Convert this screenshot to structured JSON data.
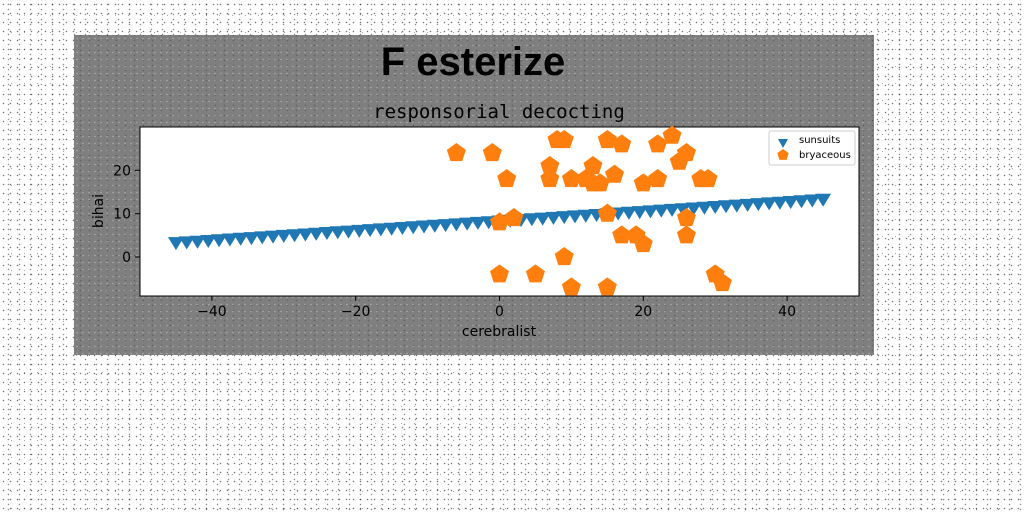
{
  "chart_data": {
    "type": "scatter",
    "title": "F esterize",
    "subtitle": "responsorial decocting",
    "xlabel": "cerebralist",
    "ylabel": "bihai",
    "xlim": [
      -50,
      50
    ],
    "ylim": [
      -9,
      30
    ],
    "xticks": [
      -40,
      -20,
      0,
      20,
      40
    ],
    "yticks": [
      0,
      10,
      20
    ],
    "grid": false,
    "legend_position": "top-right",
    "series": [
      {
        "name": "sunsuits",
        "marker": "triangle-down",
        "color": "#1f77b4",
        "line": {
          "x_start": -45,
          "x_end": 45,
          "count": 61,
          "y_start": 3.2,
          "y_end": 13.2
        }
      },
      {
        "name": "bryaceous",
        "marker": "pentagon",
        "color": "#ff7f0e",
        "points": [
          {
            "x": -6,
            "y": 24
          },
          {
            "x": -1,
            "y": 24
          },
          {
            "x": 1,
            "y": 18
          },
          {
            "x": 0,
            "y": 8
          },
          {
            "x": 2,
            "y": 9
          },
          {
            "x": 0,
            "y": -4
          },
          {
            "x": 5,
            "y": -4
          },
          {
            "x": 7,
            "y": 21
          },
          {
            "x": 7,
            "y": 18
          },
          {
            "x": 8,
            "y": 27
          },
          {
            "x": 9,
            "y": 27
          },
          {
            "x": 9,
            "y": 0
          },
          {
            "x": 10,
            "y": 18
          },
          {
            "x": 10,
            "y": -7
          },
          {
            "x": 12,
            "y": 18
          },
          {
            "x": 13,
            "y": 21
          },
          {
            "x": 13,
            "y": 17
          },
          {
            "x": 14,
            "y": 17
          },
          {
            "x": 15,
            "y": 27
          },
          {
            "x": 15,
            "y": 10
          },
          {
            "x": 15,
            "y": -7
          },
          {
            "x": 16,
            "y": 19
          },
          {
            "x": 17,
            "y": 26
          },
          {
            "x": 17,
            "y": 5
          },
          {
            "x": 19,
            "y": 5
          },
          {
            "x": 20,
            "y": 3
          },
          {
            "x": 20,
            "y": 17
          },
          {
            "x": 22,
            "y": 26
          },
          {
            "x": 22,
            "y": 18
          },
          {
            "x": 24,
            "y": 28
          },
          {
            "x": 25,
            "y": 22
          },
          {
            "x": 26,
            "y": 24
          },
          {
            "x": 26,
            "y": 9
          },
          {
            "x": 26,
            "y": 5
          },
          {
            "x": 28,
            "y": 18
          },
          {
            "x": 29,
            "y": 18
          },
          {
            "x": 30,
            "y": -4
          },
          {
            "x": 31,
            "y": -6
          }
        ]
      }
    ]
  }
}
